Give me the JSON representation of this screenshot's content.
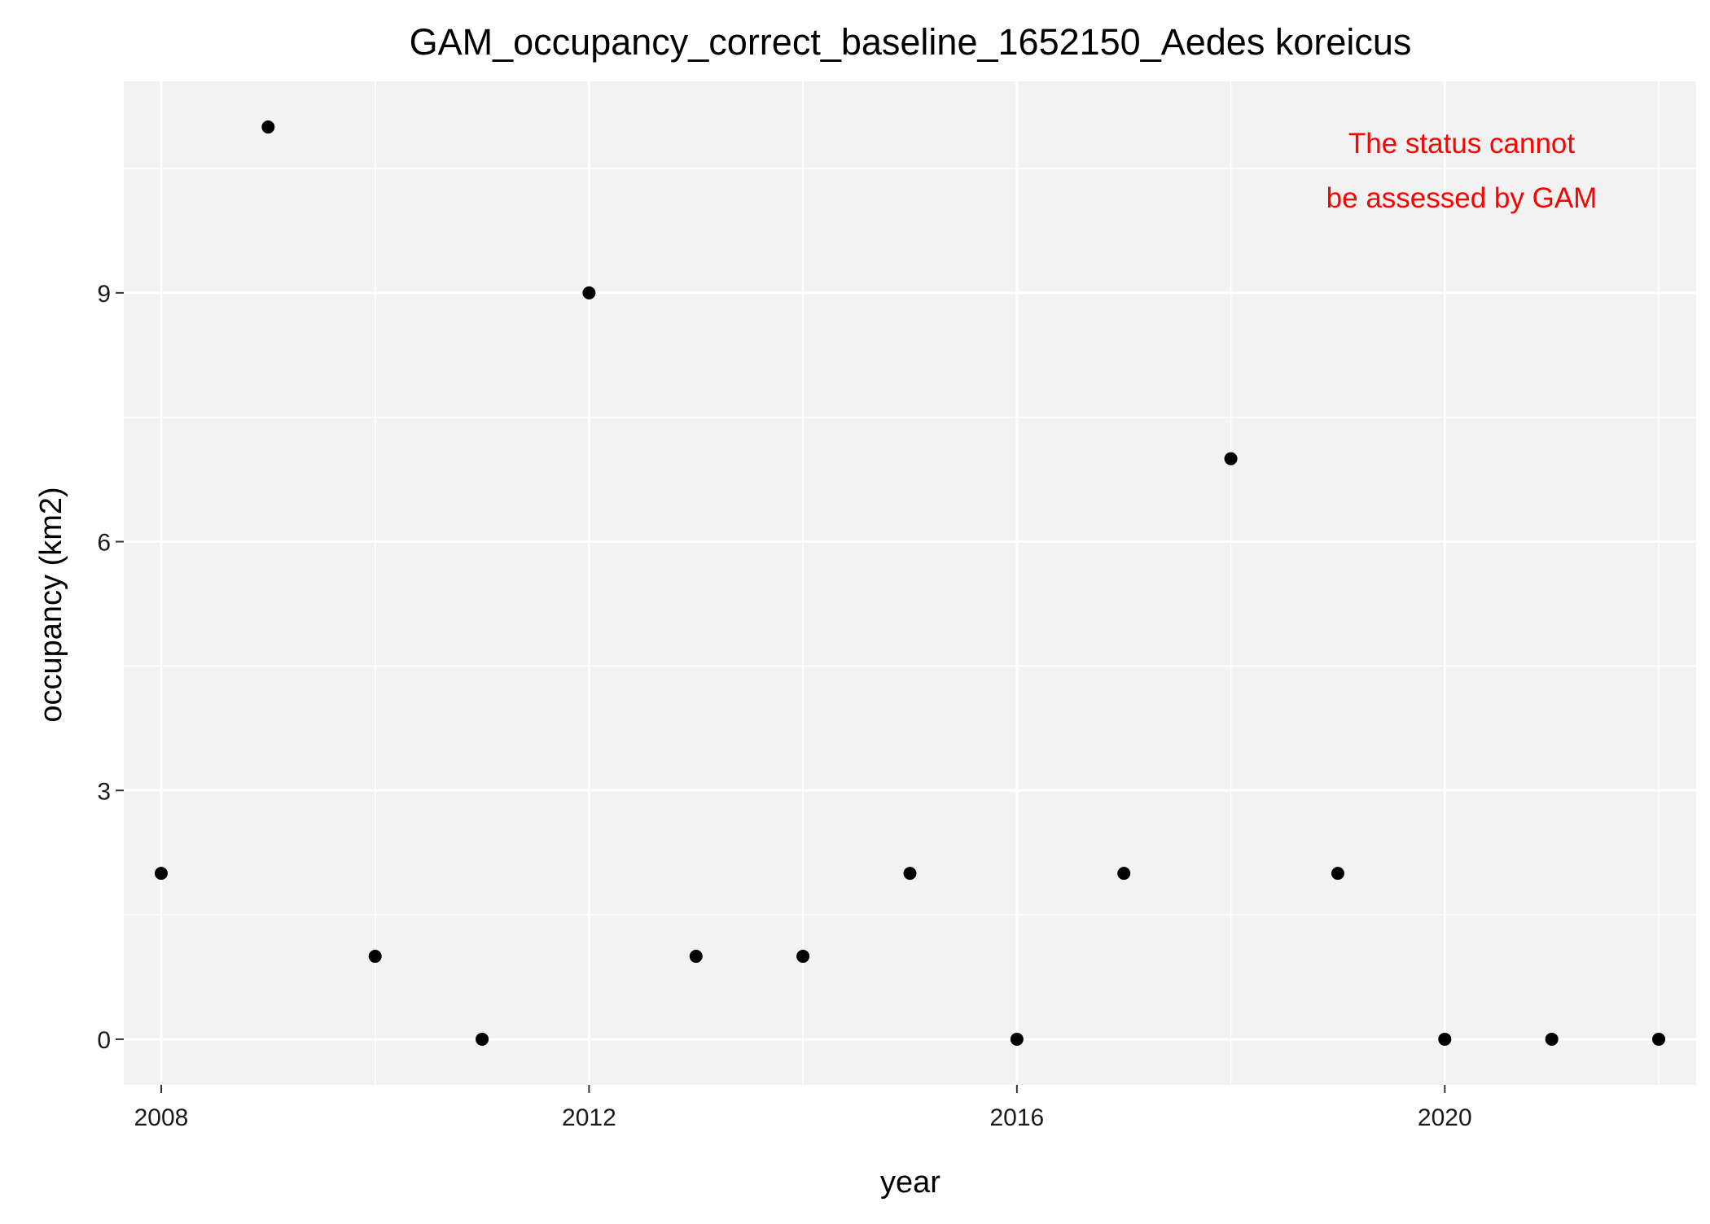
{
  "chart_data": {
    "type": "scatter",
    "title": "GAM_occupancy_correct_baseline_1652150_Aedes koreicus",
    "xlabel": "year",
    "ylabel": "occupancy (km2)",
    "xlim": [
      2007.65,
      2022.35
    ],
    "ylim": [
      -0.55,
      11.55
    ],
    "x_ticks": [
      2008,
      2012,
      2016,
      2020
    ],
    "y_ticks": [
      0,
      3,
      6,
      9
    ],
    "x_minor": [
      2010,
      2014,
      2018,
      2022
    ],
    "y_minor": [
      1.5,
      4.5,
      7.5,
      10.5
    ],
    "grid": true,
    "legend": "none",
    "series": [
      {
        "x": [
          2008,
          2009,
          2010,
          2011,
          2012,
          2013,
          2014,
          2015,
          2016,
          2017,
          2018,
          2019,
          2020,
          2021,
          2022
        ],
        "y": [
          2,
          11,
          1,
          0,
          9,
          1,
          1,
          2,
          0,
          2,
          7,
          2,
          0,
          0,
          0
        ]
      }
    ],
    "annotation": {
      "lines": [
        "The status cannot",
        "be assessed by GAM"
      ],
      "color": "#ff0000",
      "position": "top-right"
    },
    "colors": {
      "panel_background": "#f2f2f2",
      "grid": "#ffffff",
      "point": "#000000",
      "text": "#000000"
    }
  }
}
